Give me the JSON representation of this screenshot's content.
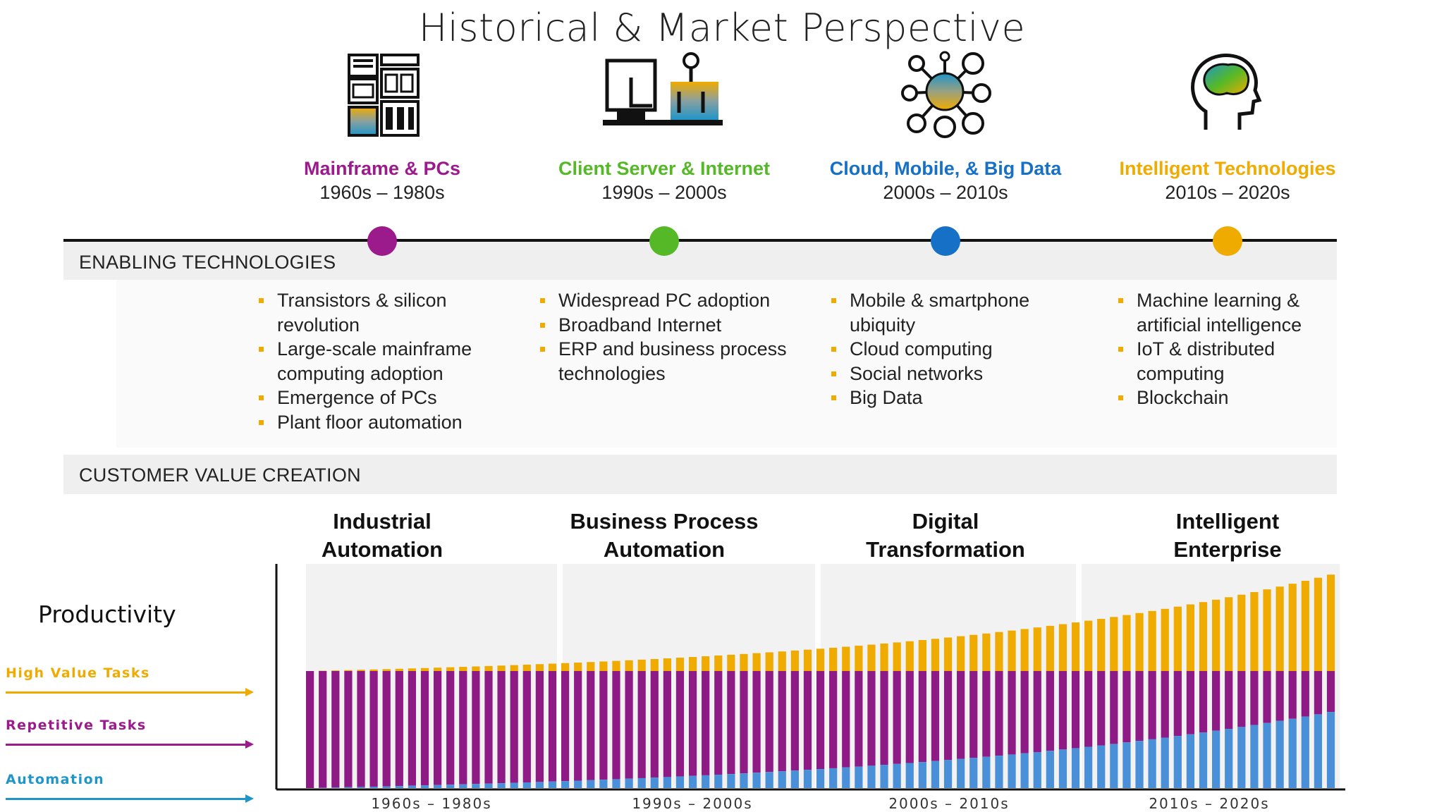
{
  "title": "Historical & Market Perspective",
  "eras": [
    {
      "name": "Mainframe & PCs",
      "years": "1960s – 1980s",
      "color": "#9b1a8c",
      "icon": "mainframe-icon"
    },
    {
      "name": "Client Server & Internet",
      "years": "1990s – 2000s",
      "color": "#55b927",
      "icon": "client-server-icon"
    },
    {
      "name": "Cloud, Mobile, & Big Data",
      "years": "2000s – 2010s",
      "color": "#1570c6",
      "icon": "cloud-network-icon"
    },
    {
      "name": "Intelligent Technologies",
      "years": "2010s – 2020s",
      "color": "#f0ab00",
      "icon": "brain-head-icon"
    }
  ],
  "enabling": {
    "label": "ENABLING TECHNOLOGIES",
    "columns": [
      [
        "Transistors & silicon revolution",
        "Large-scale mainframe computing adoption",
        "Emergence of PCs",
        "Plant floor automation"
      ],
      [
        "Widespread PC adoption",
        "Broadband Internet",
        "ERP and business process technologies"
      ],
      [
        "Mobile & smartphone ubiquity",
        "Cloud computing",
        "Social networks",
        "Big Data"
      ],
      [
        "Machine learning & artificial intelligence",
        "IoT & distributed computing",
        "Blockchain"
      ]
    ]
  },
  "value": {
    "label": "CUSTOMER VALUE CREATION",
    "titles": [
      [
        "Industrial",
        "Automation"
      ],
      [
        "Business Process",
        "Automation"
      ],
      [
        "Digital",
        "Transformation"
      ],
      [
        "Intelligent",
        "Enterprise"
      ]
    ]
  },
  "productivity": {
    "label": "Productivity",
    "legend": [
      {
        "name": "High Value Tasks",
        "color": "#f0ab00"
      },
      {
        "name": "Repetitive Tasks",
        "color": "#9b1a8c"
      },
      {
        "name": "Automation",
        "color": "#1f95c8"
      }
    ],
    "periods": [
      "1960s – 1980s",
      "1990s – 2000s",
      "2000s – 2010s",
      "2010s – 2020s"
    ]
  },
  "chart_data": {
    "type": "bar",
    "stacked": true,
    "bar_count": 81,
    "series": [
      {
        "name": "Automation",
        "color": "#4a90d9",
        "curve": {
          "start": 0.0,
          "end": 0.65,
          "growth": "exponential"
        }
      },
      {
        "name": "Repetitive Tasks",
        "color": "#8e1a86",
        "curve": {
          "start": 1.0,
          "end": 0.35,
          "growth": "complement"
        }
      },
      {
        "name": "High Value Tasks",
        "color": "#f0ab00",
        "curve": {
          "start": 0.0,
          "end": 0.9,
          "growth": "exponential"
        }
      }
    ],
    "categories": [
      "1960s – 1980s",
      "1990s – 2000s",
      "2000s – 2010s",
      "2010s – 2020s"
    ],
    "xlabel": "",
    "ylabel": "Productivity",
    "legend": "left"
  }
}
